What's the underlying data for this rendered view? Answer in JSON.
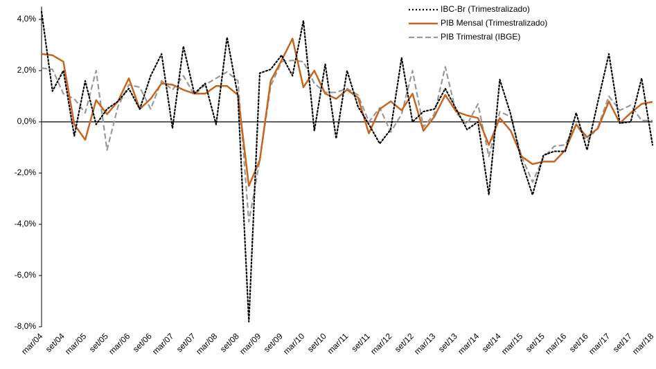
{
  "chart_data": {
    "type": "line",
    "categories": [
      "mar/04",
      null,
      "set/04",
      null,
      "mar/05",
      null,
      "set/05",
      null,
      "mar/06",
      null,
      "set/06",
      null,
      "mar/07",
      null,
      "set/07",
      null,
      "mar/08",
      null,
      "set/08",
      null,
      "mar/09",
      null,
      "set/09",
      null,
      "mar/10",
      null,
      "set/10",
      null,
      "mar/11",
      null,
      "set/11",
      null,
      "mar/12",
      null,
      "set/12",
      null,
      "mar/13",
      null,
      "set/13",
      null,
      "mar/14",
      null,
      "set/14",
      null,
      "mar/15",
      null,
      "set/15",
      null,
      "mar/16",
      null,
      "set/16",
      null,
      "mar/17",
      null,
      "set/17",
      null,
      "mar/18"
    ],
    "series": [
      {
        "name": "IBC-Br (Trimestralizado)",
        "color": "#000000",
        "style": "dotted",
        "values": [
          4.3,
          1.2,
          2.0,
          -0.55,
          1.6,
          -0.1,
          0.5,
          0.8,
          1.3,
          0.5,
          1.8,
          2.65,
          -0.25,
          2.95,
          1.1,
          1.5,
          -0.1,
          3.3,
          1.0,
          -7.8,
          1.9,
          2.05,
          2.6,
          1.8,
          3.95,
          -0.35,
          2.25,
          -0.65,
          2.0,
          0.6,
          -0.1,
          -0.85,
          -0.3,
          2.5,
          0.0,
          0.4,
          0.5,
          1.3,
          0.5,
          -0.3,
          0.0,
          -2.85,
          1.65,
          0.3,
          -1.55,
          -2.85,
          -1.3,
          -1.15,
          -1.15,
          0.35,
          -1.1,
          0.8,
          2.65,
          -0.05,
          0.0,
          1.7,
          -0.9
        ]
      },
      {
        "name": "PIB Mensal (Trimestralizado)",
        "color": "#c8641e",
        "style": "solid",
        "values": [
          2.65,
          2.6,
          2.35,
          -0.1,
          -0.7,
          0.85,
          0.3,
          0.8,
          1.7,
          0.5,
          0.9,
          1.5,
          1.45,
          1.25,
          1.1,
          1.1,
          1.4,
          1.4,
          1.05,
          -2.5,
          -1.5,
          1.6,
          2.4,
          3.25,
          1.35,
          2.0,
          1.1,
          0.9,
          1.25,
          0.95,
          -0.45,
          0.5,
          0.8,
          0.45,
          1.1,
          -0.35,
          0.2,
          1.05,
          0.4,
          0.25,
          0.15,
          -0.9,
          0.15,
          -0.35,
          -1.35,
          -1.65,
          -1.55,
          -1.55,
          -1.1,
          -0.1,
          -0.6,
          -0.25,
          0.8,
          -0.05,
          0.35,
          0.7,
          0.78
        ]
      },
      {
        "name": "PIB Trimestral (IBGE)",
        "color": "#999999",
        "style": "dashed",
        "values": [
          2.1,
          2.05,
          1.1,
          0.9,
          0.35,
          2.0,
          -1.1,
          0.6,
          1.45,
          1.35,
          0.5,
          1.6,
          1.25,
          1.8,
          1.05,
          1.45,
          1.7,
          1.95,
          1.6,
          -3.9,
          -1.5,
          1.4,
          2.35,
          2.4,
          2.35,
          1.5,
          1.15,
          1.15,
          1.3,
          1.05,
          0.0,
          0.55,
          -0.4,
          0.3,
          2.0,
          -0.2,
          0.3,
          2.15,
          0.35,
          -0.1,
          0.7,
          -1.35,
          0.4,
          0.2,
          -1.35,
          -2.35,
          -1.4,
          -0.95,
          -0.9,
          -0.1,
          -0.75,
          -0.2,
          1.0,
          0.45,
          0.65,
          0.05,
          0.05
        ]
      }
    ],
    "ylim": [
      -8,
      4.5
    ],
    "yticks": [
      {
        "value": -8,
        "label": "-8,0%"
      },
      {
        "value": -6,
        "label": "-6,0%"
      },
      {
        "value": -4,
        "label": "-4,0%"
      },
      {
        "value": -2,
        "label": "-2,0%"
      },
      {
        "value": 0,
        "label": "0,0%"
      },
      {
        "value": 2,
        "label": "2,0%"
      },
      {
        "value": 4,
        "label": "4,0%"
      }
    ],
    "legend": "top-right",
    "grid": false
  }
}
